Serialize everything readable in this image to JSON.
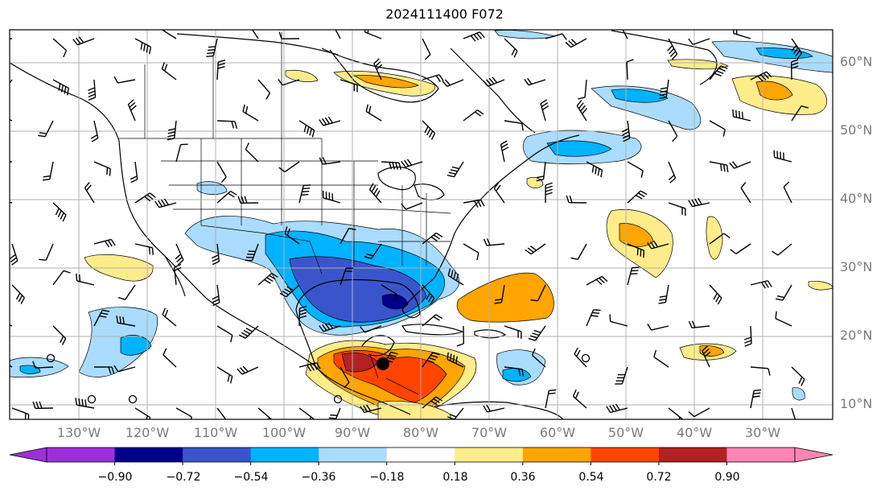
{
  "title": "2024111400 F072",
  "lat_labels": [
    "60°N",
    "50°N",
    "40°N",
    "30°N",
    "20°N",
    "10°N"
  ],
  "lon_labels": [
    "130°W",
    "120°W",
    "110°W",
    "100°W",
    "90°W",
    "80°W",
    "70°W",
    "60°W",
    "50°W",
    "40°W",
    "30°W"
  ],
  "colorbar": {
    "ticks": [
      "−0.90",
      "−0.72",
      "−0.54",
      "−0.36",
      "−0.18",
      "0.18",
      "0.36",
      "0.54",
      "0.72",
      "0.90"
    ],
    "colors": {
      "under": "#9b30d9",
      "bins": [
        "#00008b",
        "#3a55cc",
        "#00b3ff",
        "#a9dcff",
        "#ffffff",
        "#ffec8b",
        "#ffa500",
        "#ff4500",
        "#b22222"
      ],
      "over": "#ff85b4"
    }
  },
  "map": {
    "projection": "cylindrical",
    "lon_range": [
      -140,
      -22
    ],
    "lat_range": [
      7,
      64
    ],
    "grid": true,
    "wind_barbs": true,
    "colors": {
      "coast": "#000000",
      "grid": "#b0b0b0"
    }
  }
}
